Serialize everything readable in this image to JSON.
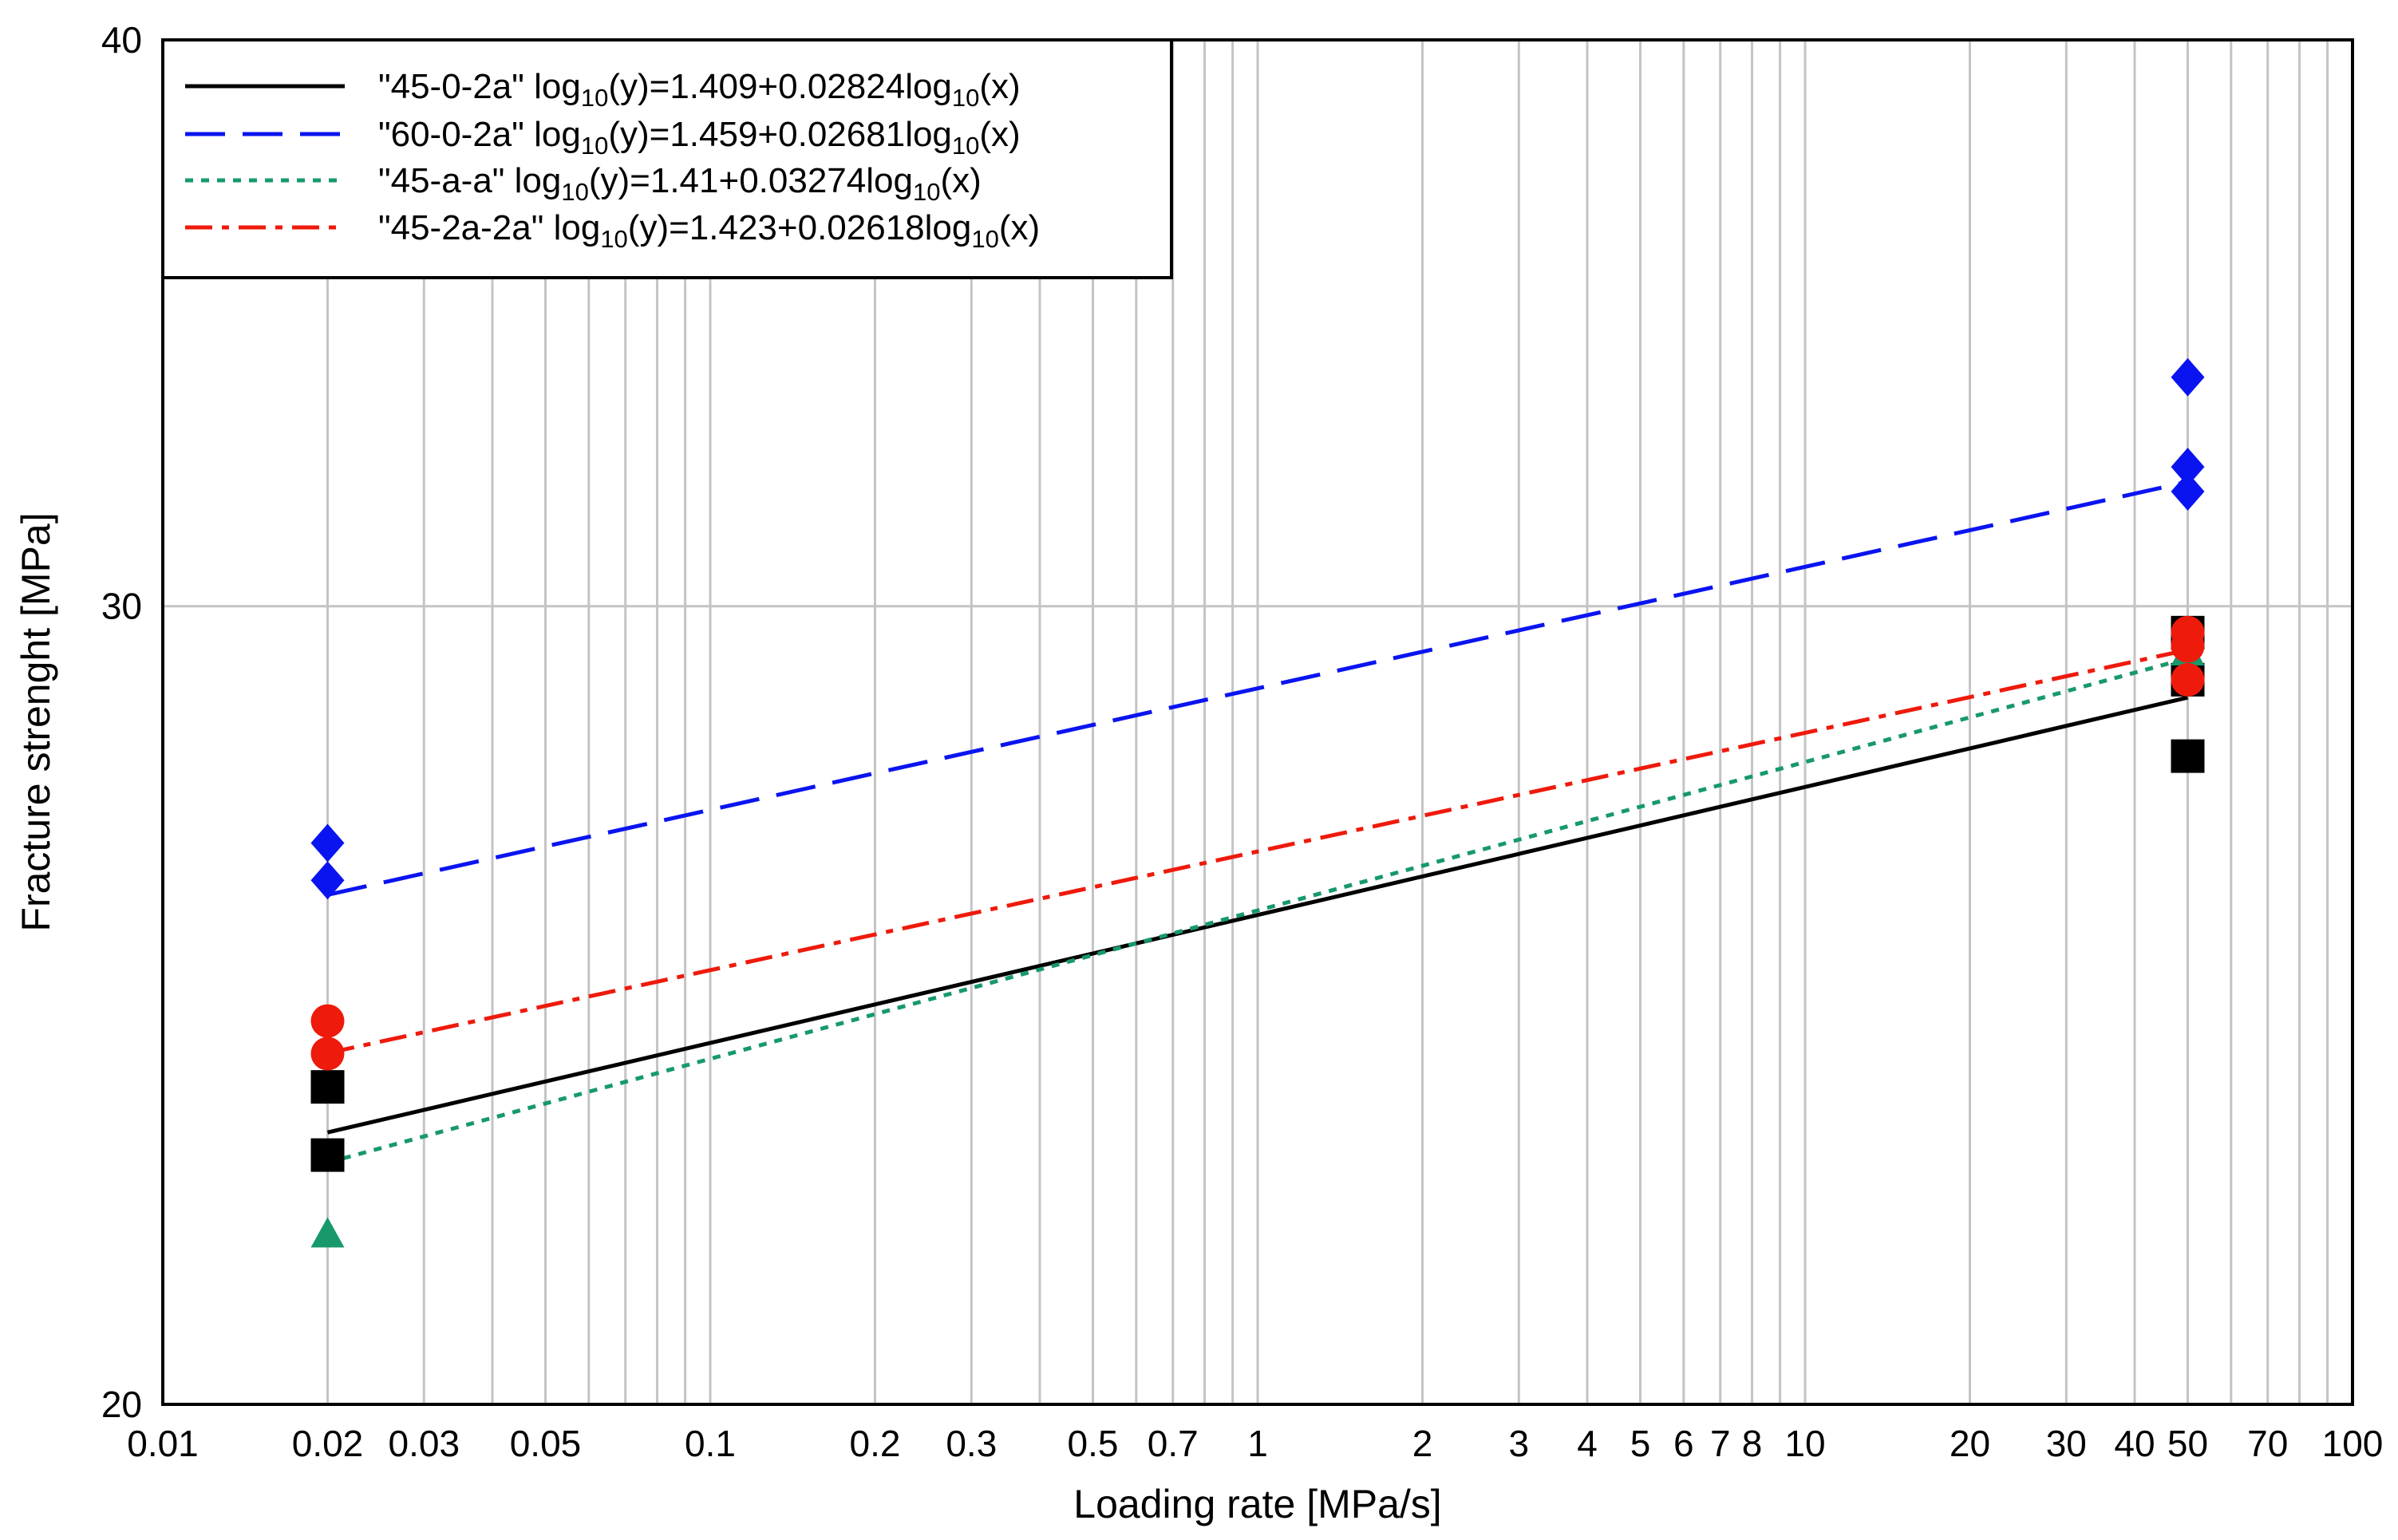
{
  "chart_data": {
    "type": "scatter",
    "xscale": "log",
    "yscale": "log",
    "xlabel": "Loading rate [MPa/s]",
    "ylabel": "Fracture strenght [MPa]",
    "xlim": [
      0.01,
      100
    ],
    "ylim": [
      20,
      40
    ],
    "grid": true,
    "legend_position": "top-left",
    "x_ticks": [
      0.01,
      0.02,
      0.03,
      0.05,
      0.1,
      0.2,
      0.3,
      0.5,
      0.7,
      1,
      2,
      3,
      4,
      5,
      6,
      7,
      8,
      10,
      20,
      30,
      40,
      50,
      70,
      100
    ],
    "x_tick_labels": [
      "0.01",
      "0.02",
      "0.03",
      "0.05",
      "0.1",
      "0.2",
      "0.3",
      "0.5",
      "0.7",
      "1",
      "2",
      "3",
      "4",
      "5",
      "6",
      "7",
      "8",
      "10",
      "20",
      "30",
      "40",
      "50",
      "70",
      "100"
    ],
    "y_ticks": [
      20,
      30,
      40
    ],
    "y_tick_labels": [
      "20",
      "30",
      "40"
    ],
    "series": [
      {
        "name": "\"45-0-2a\"",
        "formula": "log10(y)=1.409+0.02824log10(x)",
        "legend_label": "\"45-0-2a\" log10(y)=1.409+0.02824log10(x)",
        "color": "#000000",
        "line_style": "solid",
        "marker": "square",
        "fit": {
          "a": 1.409,
          "b": 0.02824,
          "x_range": [
            0.02,
            50
          ]
        },
        "points": [
          [
            0.02,
            23.5
          ],
          [
            0.02,
            22.7
          ],
          [
            50,
            29.6
          ],
          [
            50,
            28.9
          ],
          [
            50,
            27.8
          ]
        ]
      },
      {
        "name": "\"60-0-2a\"",
        "formula": "log10(y)=1.459+0.02681log10(x)",
        "legend_label": "\"60-0-2a\" log10(y)=1.459+0.02681log10(x)",
        "color": "#0a14f0",
        "line_style": "dashed",
        "marker": "diamond",
        "fit": {
          "a": 1.459,
          "b": 0.02681,
          "x_range": [
            0.02,
            50
          ]
        },
        "points": [
          [
            0.02,
            26.6
          ],
          [
            0.02,
            26.1
          ],
          [
            50,
            33.7
          ],
          [
            50,
            32.2
          ],
          [
            50,
            31.8
          ]
        ]
      },
      {
        "name": "\"45-a-a\"",
        "formula": "log10(y)=1.41+0.03274log10(x)",
        "legend_label": "\"45-a-a\" log10(y)=1.41+0.03274log10(x)",
        "color": "#17996b",
        "line_style": "dotted",
        "marker": "triangle",
        "fit": {
          "a": 1.41,
          "b": 0.03274,
          "x_range": [
            0.02,
            50
          ]
        },
        "points": [
          [
            0.02,
            21.8
          ],
          [
            50,
            29.3
          ]
        ]
      },
      {
        "name": "\"45-2a-2a\"",
        "formula": "log10(y)=1.423+0.02618log10(x)",
        "legend_label": "\"45-2a-2a\" log10(y)=1.423+0.02618log10(x)",
        "color": "#ee1a0c",
        "line_style": "dashdot",
        "marker": "circle",
        "fit": {
          "a": 1.423,
          "b": 0.02618,
          "x_range": [
            0.02,
            50
          ]
        },
        "points": [
          [
            0.02,
            24.3
          ],
          [
            0.02,
            23.9
          ],
          [
            50,
            29.6
          ],
          [
            50,
            29.4
          ],
          [
            50,
            28.9
          ]
        ]
      }
    ]
  }
}
